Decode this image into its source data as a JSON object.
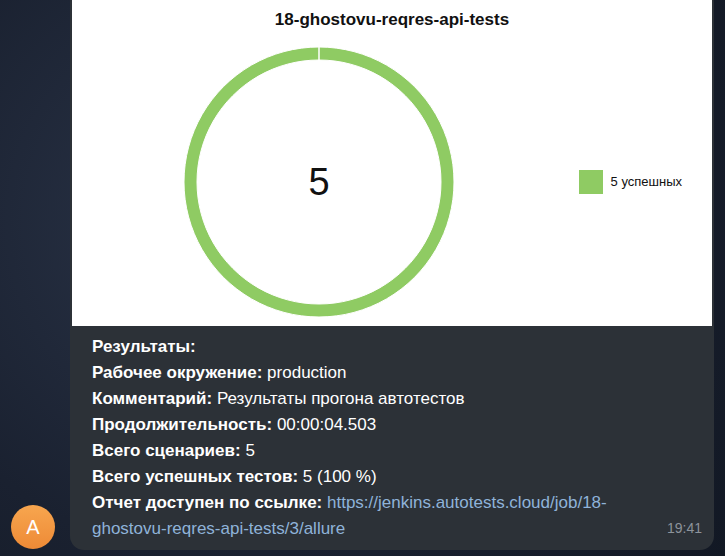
{
  "chart_data": {
    "type": "pie",
    "title": "18-ghostovu-reqres-api-tests",
    "categories": [
      "5 успешных"
    ],
    "values": [
      5
    ],
    "colors": [
      "#8fcb63"
    ],
    "total": 5,
    "legend": "right"
  },
  "message": {
    "heading": "Результаты:",
    "fields": [
      {
        "label": "Рабочее окружение:",
        "value": "production"
      },
      {
        "label": "Комментарий:",
        "value": "Результаты прогона автотестов"
      },
      {
        "label": "Продолжительность:",
        "value": "00:00:04.503"
      },
      {
        "label": "Всего сценариев:",
        "value": "5"
      },
      {
        "label": "Всего успешных тестов:",
        "value": "5 (100 %)"
      }
    ],
    "link_label": "Отчет доступен по ссылке:",
    "link": "https://jenkins.autotests.cloud/job/18-ghostovu-reqres-api-tests/3/allure",
    "time": "19:41",
    "avatar": "A"
  }
}
